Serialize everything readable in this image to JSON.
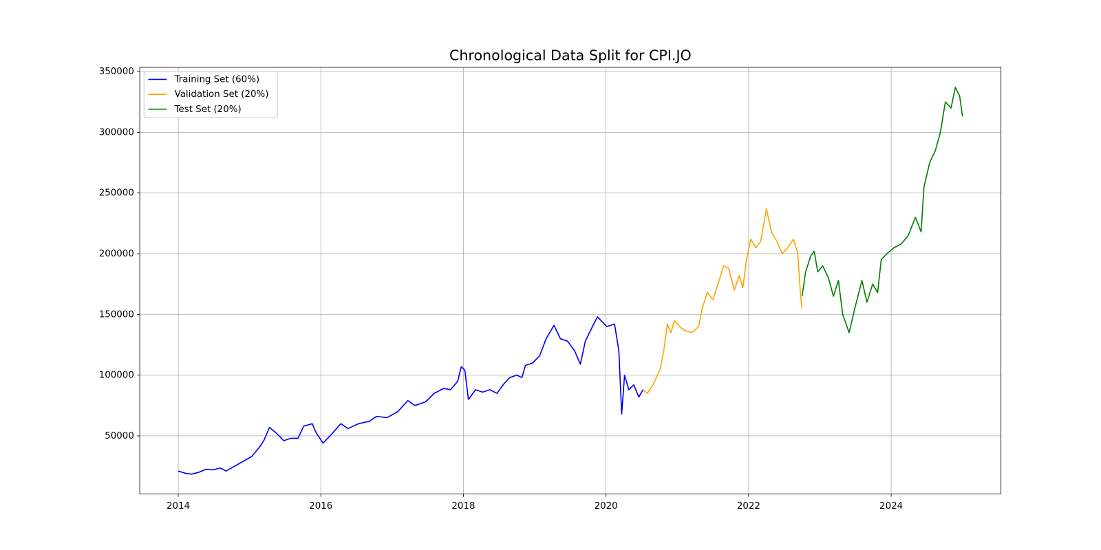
{
  "chart_data": {
    "type": "line",
    "title": "Chronological Data Split for CPI.JO",
    "xlim": [
      2013.46,
      2025.54
    ],
    "xticks": [
      2014,
      2016,
      2018,
      2020,
      2022,
      2024
    ],
    "ylim": [
      2100,
      353500
    ],
    "yticks": [
      50000,
      100000,
      150000,
      200000,
      250000,
      300000,
      350000
    ],
    "grid": true,
    "legend": "upper left",
    "series": [
      {
        "name": "Training Set (60%)",
        "color": "#0000ff",
        "x": [
          2014.0,
          2014.11,
          2014.19,
          2014.29,
          2014.39,
          2014.49,
          2014.59,
          2014.67,
          2014.79,
          2014.94,
          2015.03,
          2015.13,
          2015.2,
          2015.28,
          2015.38,
          2015.48,
          2015.58,
          2015.68,
          2015.76,
          2015.88,
          2015.93,
          2016.03,
          2016.13,
          2016.28,
          2016.38,
          2016.53,
          2016.68,
          2016.78,
          2016.93,
          2017.08,
          2017.22,
          2017.32,
          2017.47,
          2017.59,
          2017.72,
          2017.82,
          2017.92,
          2017.97,
          2018.02,
          2018.07,
          2018.17,
          2018.27,
          2018.37,
          2018.47,
          2018.57,
          2018.65,
          2018.75,
          2018.82,
          2018.87,
          2018.97,
          2019.07,
          2019.16,
          2019.27,
          2019.36,
          2019.46,
          2019.56,
          2019.64,
          2019.71,
          2019.81,
          2019.88,
          2020.01,
          2020.12,
          2020.18,
          2020.22,
          2020.26,
          2020.32,
          2020.39,
          2020.46,
          2020.52
        ],
        "values": [
          21000,
          19000,
          18500,
          20000,
          22500,
          22000,
          23500,
          21000,
          25000,
          30000,
          33000,
          40000,
          46000,
          57000,
          52000,
          46000,
          48000,
          48000,
          58000,
          60000,
          53000,
          44000,
          50000,
          60000,
          56000,
          60000,
          62000,
          66000,
          65000,
          70000,
          79000,
          75000,
          78000,
          85000,
          89000,
          88000,
          95000,
          107000,
          104000,
          80000,
          88000,
          86000,
          88000,
          85000,
          93000,
          98000,
          100000,
          98000,
          108000,
          110000,
          116000,
          130000,
          141000,
          130000,
          128000,
          120000,
          109000,
          128000,
          140000,
          148000,
          140000,
          142000,
          120000,
          68000,
          100000,
          88000,
          92000,
          82000,
          88000
        ]
      },
      {
        "name": "Validation Set (20%)",
        "color": "#ffa500",
        "x": [
          2020.52,
          2020.58,
          2020.66,
          2020.76,
          2020.81,
          2020.86,
          2020.91,
          2020.96,
          2021.03,
          2021.1,
          2021.2,
          2021.3,
          2021.35,
          2021.42,
          2021.5,
          2021.57,
          2021.65,
          2021.72,
          2021.8,
          2021.87,
          2021.92,
          2021.97,
          2022.03,
          2022.1,
          2022.17,
          2022.25,
          2022.32,
          2022.4,
          2022.47,
          2022.55,
          2022.63,
          2022.69,
          2022.73,
          2022.75
        ],
        "values": [
          88000,
          85000,
          92000,
          105000,
          120000,
          142000,
          135000,
          145000,
          140000,
          137000,
          135000,
          140000,
          155000,
          168000,
          162000,
          175000,
          190000,
          188000,
          170000,
          182000,
          172000,
          195000,
          212000,
          205000,
          210000,
          237000,
          218000,
          210000,
          200000,
          205000,
          212000,
          200000,
          165000,
          155000
        ]
      },
      {
        "name": "Test Set (20%)",
        "color": "#008000",
        "x": [
          2022.75,
          2022.8,
          2022.87,
          2022.92,
          2022.97,
          2023.04,
          2023.12,
          2023.19,
          2023.26,
          2023.32,
          2023.41,
          2023.49,
          2023.59,
          2023.66,
          2023.74,
          2023.81,
          2023.86,
          2023.94,
          2024.04,
          2024.14,
          2024.24,
          2024.34,
          2024.42,
          2024.46,
          2024.54,
          2024.62,
          2024.69,
          2024.76,
          2024.84,
          2024.9,
          2024.96,
          2025.0
        ],
        "values": [
          165000,
          185000,
          198000,
          202000,
          185000,
          190000,
          180000,
          165000,
          178000,
          150000,
          135000,
          155000,
          178000,
          160000,
          175000,
          168000,
          195000,
          200000,
          205000,
          208000,
          215000,
          230000,
          218000,
          255000,
          275000,
          285000,
          300000,
          325000,
          320000,
          337000,
          330000,
          313000
        ]
      }
    ]
  }
}
